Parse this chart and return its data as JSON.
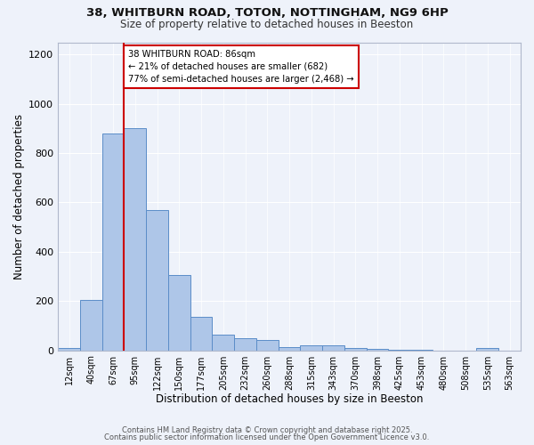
{
  "title_line1": "38, WHITBURN ROAD, TOTON, NOTTINGHAM, NG9 6HP",
  "title_line2": "Size of property relative to detached houses in Beeston",
  "xlabel": "Distribution of detached houses by size in Beeston",
  "ylabel": "Number of detached properties",
  "bar_labels": [
    "12sqm",
    "40sqm",
    "67sqm",
    "95sqm",
    "122sqm",
    "150sqm",
    "177sqm",
    "205sqm",
    "232sqm",
    "260sqm",
    "288sqm",
    "315sqm",
    "343sqm",
    "370sqm",
    "398sqm",
    "425sqm",
    "453sqm",
    "480sqm",
    "508sqm",
    "535sqm",
    "563sqm"
  ],
  "bar_values": [
    10,
    205,
    880,
    900,
    570,
    305,
    135,
    65,
    50,
    42,
    12,
    22,
    20,
    8,
    5,
    3,
    3,
    0,
    0,
    8,
    0
  ],
  "bar_color": "#aec6e8",
  "bar_edge_color": "#5b8dc8",
  "bg_color": "#eef2fa",
  "grid_color": "#ffffff",
  "property_line_x": 2.5,
  "annotation_text": "38 WHITBURN ROAD: 86sqm\n← 21% of detached houses are smaller (682)\n77% of semi-detached houses are larger (2,468) →",
  "annotation_box_color": "#ffffff",
  "annotation_box_edge": "#cc0000",
  "red_line_color": "#cc0000",
  "ylim": [
    0,
    1250
  ],
  "yticks": [
    0,
    200,
    400,
    600,
    800,
    1000,
    1200
  ],
  "footer_line1": "Contains HM Land Registry data © Crown copyright and database right 2025.",
  "footer_line2": "Contains public sector information licensed under the Open Government Licence v3.0."
}
